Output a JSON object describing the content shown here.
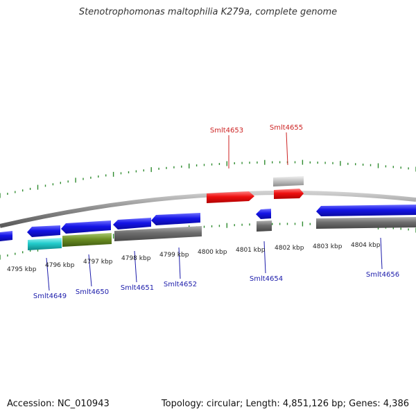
{
  "title": "Stenotrophomonas maltophilia K279a, complete genome",
  "accession": "Accession: NC_010943",
  "summary": "Topology: circular; Length: 4,851,126 bp; Genes: 4,386",
  "colors": {
    "backbone": "#8a8a8a",
    "tick": "#2e8b2e",
    "cds": "#1010e0",
    "highlight": "#ee1111",
    "gray_feature": "#6e6e6e",
    "light_gray_feature": "#c4c4c4",
    "cyan_feature": "#22cccc",
    "olive_feature": "#6b8e23",
    "forward_label": "#cc2222",
    "reverse_label": "#1a1aaa"
  },
  "kbp_labels": [
    "4795 kbp",
    "4796 kbp",
    "4797 kbp",
    "4798 kbp",
    "4799 kbp",
    "4800 kbp",
    "4801 kbp",
    "4802 kbp",
    "4803 kbp",
    "4804 kbp"
  ],
  "forward_genes": [
    "Smlt4653",
    "Smlt4655"
  ],
  "reverse_genes": [
    "Smlt4649",
    "Smlt4650",
    "Smlt4651",
    "Smlt4652",
    "Smlt4654",
    "Smlt4656"
  ]
}
